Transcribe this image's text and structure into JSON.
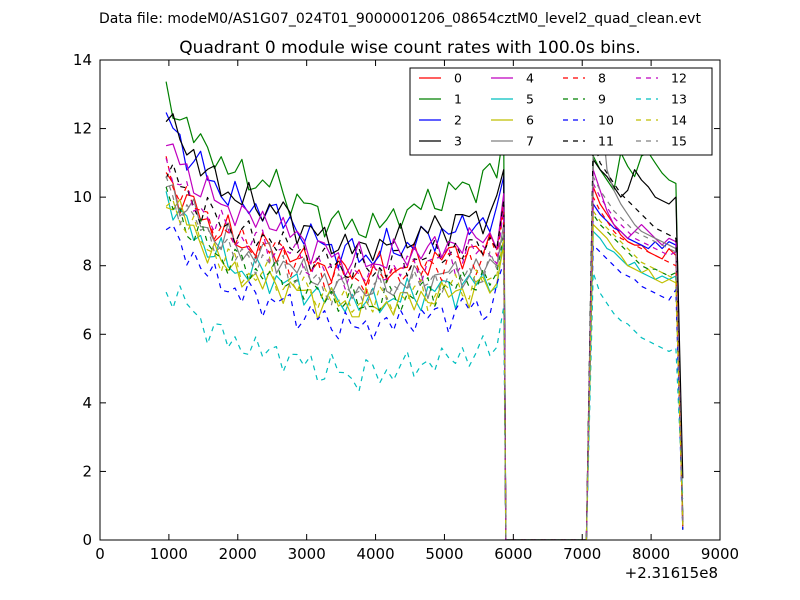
{
  "chart_data": {
    "type": "line",
    "suptitle": "Data file: modeM0/AS1G07_024T01_9000001206_08654cztM0_level2_quad_clean.evt",
    "title": "Quadrant 0 module wise count rates with 100.0s bins.",
    "xlabel": "",
    "ylabel": "",
    "x_offset_label": "+2.31615e8",
    "xlim": [
      0,
      9000
    ],
    "ylim": [
      0,
      14
    ],
    "x_ticks": [
      "0",
      "1000",
      "2000",
      "3000",
      "4000",
      "5000",
      "6000",
      "7000",
      "8000",
      "9000"
    ],
    "y_ticks": [
      "0",
      "2",
      "4",
      "6",
      "8",
      "10",
      "12",
      "14"
    ],
    "grid": false,
    "legend_position": "top-right",
    "legend_columns": 4,
    "x_segment1": {
      "start": 960,
      "step": 100,
      "count": 49
    },
    "x_segment2": {
      "start": 7160,
      "step": 100,
      "count": 14
    },
    "gap_points": [
      [
        5890,
        0
      ],
      [
        6000,
        0
      ],
      [
        6500,
        0
      ],
      [
        7060,
        0
      ]
    ],
    "series": [
      {
        "name": "0",
        "color": "#ff0000",
        "dashed": false,
        "l1": 10.6,
        "l2": 8.5,
        "l3": 7.8,
        "l4": 8.6,
        "e2": [
          10.3,
          9.8,
          9.5,
          9.2,
          8.9,
          8.7,
          8.6,
          8.6,
          8.4,
          8.3,
          8.2,
          8.5,
          8.3,
          0.4
        ]
      },
      {
        "name": "1",
        "color": "#008000",
        "dashed": false,
        "l1": 13.0,
        "l2": 10.4,
        "l3": 9.1,
        "l4": 10.7,
        "e2": [
          11.2,
          10.8,
          10.5,
          10.2,
          11.3,
          10.9,
          10.6,
          11.2,
          11.3,
          11.0,
          10.7,
          10.5,
          10.4,
          0.6
        ]
      },
      {
        "name": "2",
        "color": "#0000ff",
        "dashed": false,
        "l1": 12.3,
        "l2": 9.6,
        "l3": 8.3,
        "l4": 9.4,
        "e2": [
          9.8,
          9.5,
          9.3,
          9.1,
          9.0,
          8.8,
          8.7,
          8.6,
          8.5,
          8.7,
          8.5,
          8.7,
          8.6,
          0.4
        ]
      },
      {
        "name": "3",
        "color": "#000000",
        "dashed": false,
        "l1": 12.4,
        "l2": 9.7,
        "l3": 8.5,
        "l4": 9.6,
        "e2": [
          11.1,
          10.8,
          10.6,
          10.3,
          10.0,
          10.2,
          10.8,
          10.5,
          10.3,
          10.0,
          9.9,
          9.8,
          10.0,
          1.8
        ]
      },
      {
        "name": "4",
        "color": "#bf00bf",
        "dashed": false,
        "l1": 11.5,
        "l2": 9.3,
        "l3": 8.1,
        "l4": 8.9,
        "e2": [
          10.8,
          10.2,
          9.6,
          9.2,
          9.0,
          8.8,
          9.0,
          9.2,
          9.0,
          8.8,
          8.6,
          8.8,
          8.7,
          0.5
        ]
      },
      {
        "name": "5",
        "color": "#00bfbf",
        "dashed": false,
        "l1": 10.0,
        "l2": 7.7,
        "l3": 6.9,
        "l4": 7.6,
        "e2": [
          9.0,
          8.8,
          8.5,
          8.4,
          8.2,
          8.0,
          8.1,
          7.8,
          7.7,
          7.6,
          7.7,
          7.6,
          7.7,
          0.4
        ]
      },
      {
        "name": "6",
        "color": "#bfbf00",
        "dashed": false,
        "l1": 10.2,
        "l2": 7.5,
        "l3": 6.8,
        "l4": 7.4,
        "e2": [
          9.2,
          9.0,
          8.8,
          8.5,
          8.3,
          8.0,
          7.9,
          7.8,
          7.9,
          7.6,
          7.5,
          7.6,
          7.5,
          0.5
        ]
      },
      {
        "name": "7",
        "color": "#808080",
        "dashed": false,
        "l1": 10.4,
        "l2": 8.3,
        "l3": 7.3,
        "l4": 8.0,
        "e2": [
          11.5,
          12.9,
          10.8,
          10.2,
          9.8,
          9.5,
          9.2,
          9.0,
          8.9,
          8.8,
          8.7,
          8.6,
          8.5,
          0.6
        ]
      },
      {
        "name": "8",
        "color": "#ff0000",
        "dashed": true,
        "l1": 10.8,
        "l2": 8.5,
        "l3": 7.6,
        "l4": 8.4,
        "e2": [
          10.0,
          9.6,
          9.3,
          9.0,
          8.8,
          8.7,
          8.6,
          8.5,
          8.4,
          8.3,
          8.2,
          8.1,
          8.0,
          0.4
        ]
      },
      {
        "name": "9",
        "color": "#008000",
        "dashed": true,
        "l1": 10.0,
        "l2": 7.8,
        "l3": 6.9,
        "l4": 7.7,
        "e2": [
          9.5,
          9.2,
          9.0,
          8.8,
          8.6,
          8.4,
          8.2,
          8.0,
          7.9,
          7.9,
          7.8,
          7.7,
          7.8,
          0.3
        ]
      },
      {
        "name": "10",
        "color": "#0000ff",
        "dashed": true,
        "l1": 9.2,
        "l2": 7.0,
        "l3": 6.2,
        "l4": 6.9,
        "e2": [
          8.6,
          8.4,
          8.2,
          8.0,
          7.8,
          7.7,
          7.6,
          7.4,
          7.3,
          7.2,
          7.1,
          7.0,
          7.3,
          0.3
        ]
      },
      {
        "name": "11",
        "color": "#000000",
        "dashed": true,
        "l1": 10.8,
        "l2": 8.8,
        "l3": 7.9,
        "l4": 8.7,
        "e2": [
          11.7,
          11.0,
          10.7,
          10.4,
          10.1,
          9.9,
          9.7,
          9.5,
          9.3,
          9.1,
          9.0,
          8.9,
          8.8,
          0.5
        ]
      },
      {
        "name": "12",
        "color": "#bf00bf",
        "dashed": true,
        "l1": 10.9,
        "l2": 8.6,
        "l3": 7.7,
        "l4": 8.5,
        "e2": [
          10.4,
          10.0,
          9.7,
          9.4,
          9.2,
          9.0,
          8.8,
          8.7,
          8.6,
          8.5,
          8.4,
          8.3,
          8.4,
          0.4
        ]
      },
      {
        "name": "13",
        "color": "#00bfbf",
        "dashed": true,
        "l1": 7.5,
        "l2": 5.5,
        "l3": 4.8,
        "l4": 5.6,
        "e2": [
          7.8,
          7.2,
          6.9,
          6.6,
          6.4,
          6.3,
          6.1,
          5.9,
          5.8,
          5.7,
          5.6,
          5.5,
          5.6,
          1.2
        ]
      },
      {
        "name": "14",
        "color": "#bfbf00",
        "dashed": true,
        "l1": 10.0,
        "l2": 7.7,
        "l3": 6.9,
        "l4": 7.6,
        "e2": [
          9.6,
          9.3,
          9.1,
          8.9,
          8.7,
          8.5,
          8.3,
          8.1,
          8.0,
          7.9,
          7.8,
          7.7,
          7.6,
          0.4
        ]
      },
      {
        "name": "15",
        "color": "#808080",
        "dashed": true,
        "l1": 10.3,
        "l2": 8.1,
        "l3": 7.2,
        "l4": 7.9,
        "e2": [
          10.6,
          10.2,
          9.9,
          9.6,
          9.4,
          9.2,
          9.0,
          8.9,
          8.8,
          8.7,
          8.6,
          8.5,
          8.4,
          0.5
        ]
      }
    ]
  }
}
